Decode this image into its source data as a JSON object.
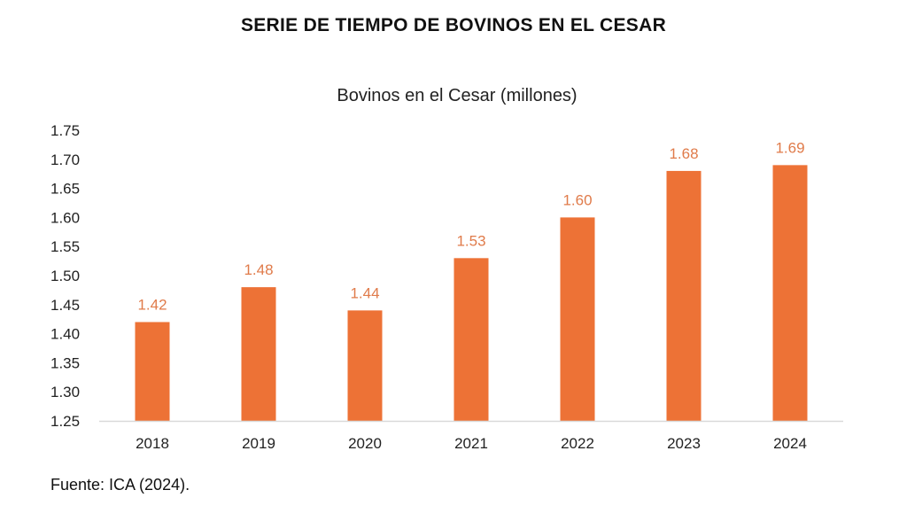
{
  "page": {
    "title": "SERIE DE TIEMPO DE BOVINOS EN EL CESAR",
    "footer": "Fuente: ICA (2024)."
  },
  "chart_data": {
    "type": "bar",
    "title": "Bovinos en el Cesar (millones)",
    "xlabel": "",
    "ylabel": "",
    "categories": [
      "2018",
      "2019",
      "2020",
      "2021",
      "2022",
      "2023",
      "2024"
    ],
    "values": [
      1.42,
      1.48,
      1.44,
      1.53,
      1.6,
      1.68,
      1.69
    ],
    "data_labels": [
      "1.42",
      "1.48",
      "1.44",
      "1.53",
      "1.60",
      "1.68",
      "1.69"
    ],
    "ylim": [
      1.25,
      1.75
    ],
    "yticks": [
      "1.25",
      "1.30",
      "1.35",
      "1.40",
      "1.45",
      "1.50",
      "1.55",
      "1.60",
      "1.65",
      "1.70",
      "1.75"
    ],
    "grid": false,
    "legend": "none",
    "colors": {
      "bar": "#ED7236",
      "label": "#E07B4A",
      "axis": "#D9D9D9"
    }
  }
}
